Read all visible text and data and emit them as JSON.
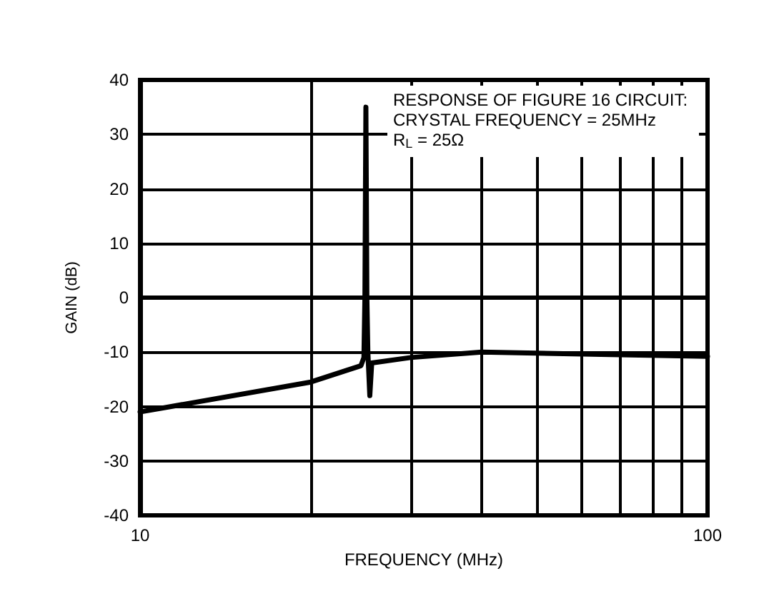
{
  "chart_data": {
    "type": "line",
    "xlabel": "FREQUENCY (MHz)",
    "ylabel": "GAIN (dB)",
    "annotations": [
      "RESPONSE OF FIGURE 16 CIRCUIT:\nCRYSTAL FREQUENCY = 25MHz\nR$_{L}$ = 25Ω"
    ],
    "log": "x",
    "grid": true,
    "marker": "none",
    "line_style": "solid",
    "xlim": [
      10,
      100
    ],
    "xticks": [
      10,
      {
        "value": 20,
        "label": null
      },
      {
        "value": 30,
        "label": null
      },
      {
        "value": 40,
        "label": null
      },
      {
        "value": 50,
        "label": null
      },
      {
        "value": 60,
        "label": null
      },
      {
        "value": 70,
        "label": null
      },
      {
        "value": 80,
        "label": null
      },
      {
        "value": 90,
        "label": null
      },
      100
    ],
    "ylim": [
      -40,
      40
    ],
    "yticks": [
      -40,
      -30,
      -20,
      -10,
      0,
      10,
      20,
      30,
      40
    ],
    "series": [
      {
        "color": "#000000",
        "x": [
          10,
          20,
          24.5,
          24.8,
          24.9,
          25,
          25.1,
          25.2,
          25.4,
          25.6,
          30,
          40,
          50,
          70,
          100
        ],
        "values": [
          -21,
          -15.5,
          -12.5,
          -11,
          0,
          35,
          0,
          -10,
          -18,
          -12,
          -11,
          -10,
          -10.2,
          -10.5,
          -10.8
        ]
      }
    ]
  }
}
